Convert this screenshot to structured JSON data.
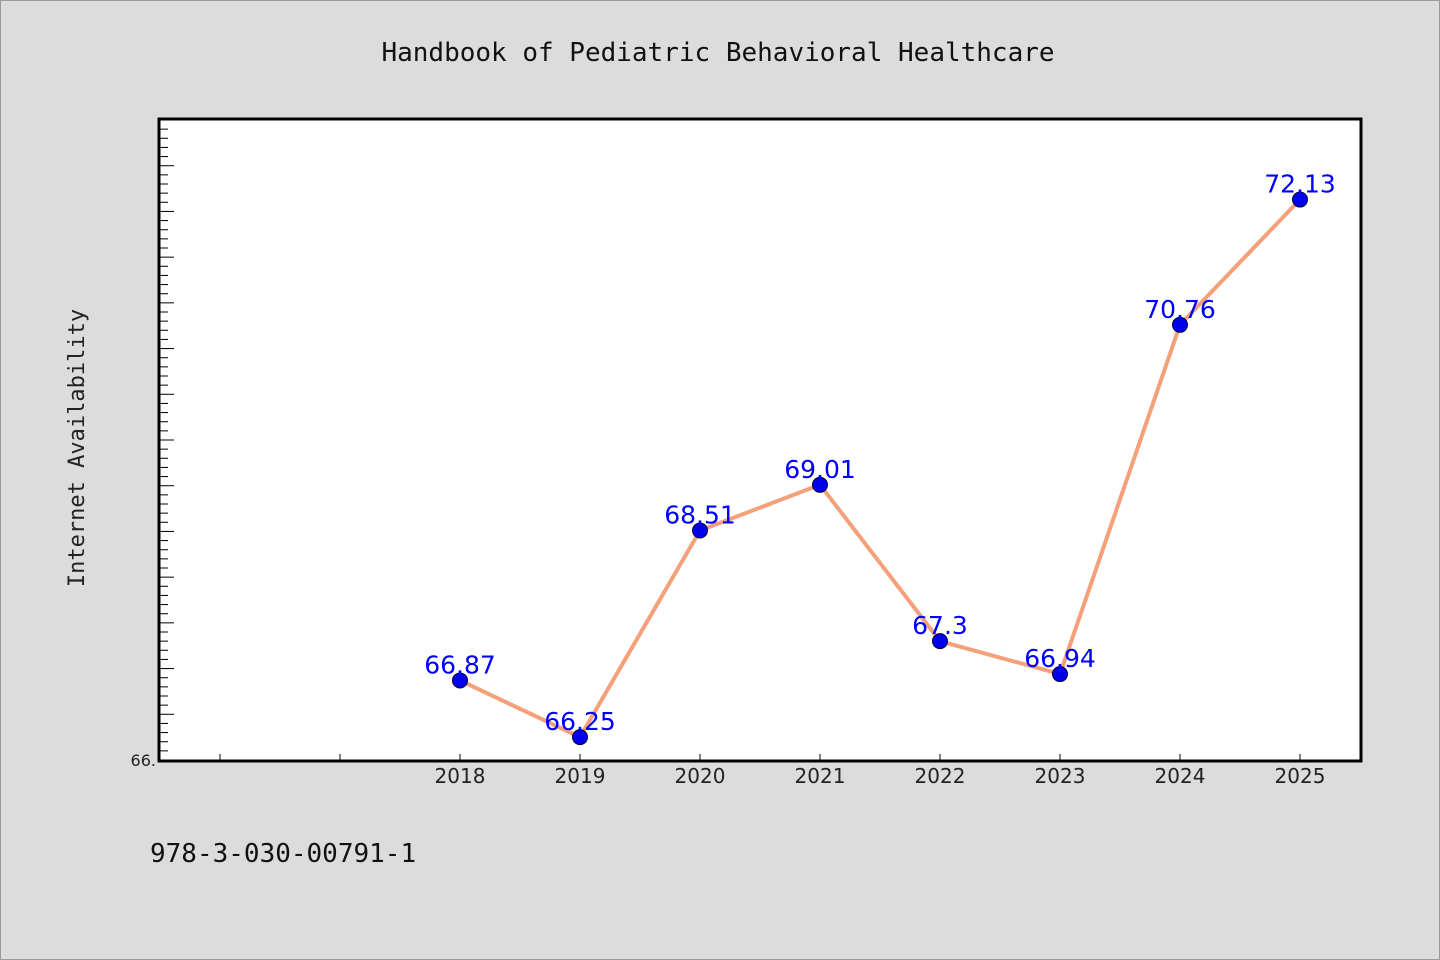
{
  "chart_data": {
    "type": "line",
    "title": "Handbook of Pediatric Behavioral Healthcare",
    "xlabel": "",
    "ylabel": "Internet Availability",
    "categories": [
      "2018",
      "2019",
      "2020",
      "2021",
      "2022",
      "2023",
      "2024",
      "2025"
    ],
    "series": [
      {
        "values": [
          66.87,
          66.25,
          68.51,
          69.01,
          67.3,
          66.94,
          70.76,
          72.13
        ],
        "point_labels": [
          "66.87",
          "66.25",
          "68.51",
          "69.01",
          "67.3",
          "66.94",
          "70.76",
          "72.13"
        ],
        "line_color": "#f4a07a",
        "marker_color": "#0000ee"
      }
    ],
    "ylim": [
      66.0,
      73.0
    ],
    "y_tick_labels": [
      "66."
    ],
    "grid": false,
    "legend": "none"
  },
  "footer": {
    "code": "978-3-030-00791-1"
  }
}
